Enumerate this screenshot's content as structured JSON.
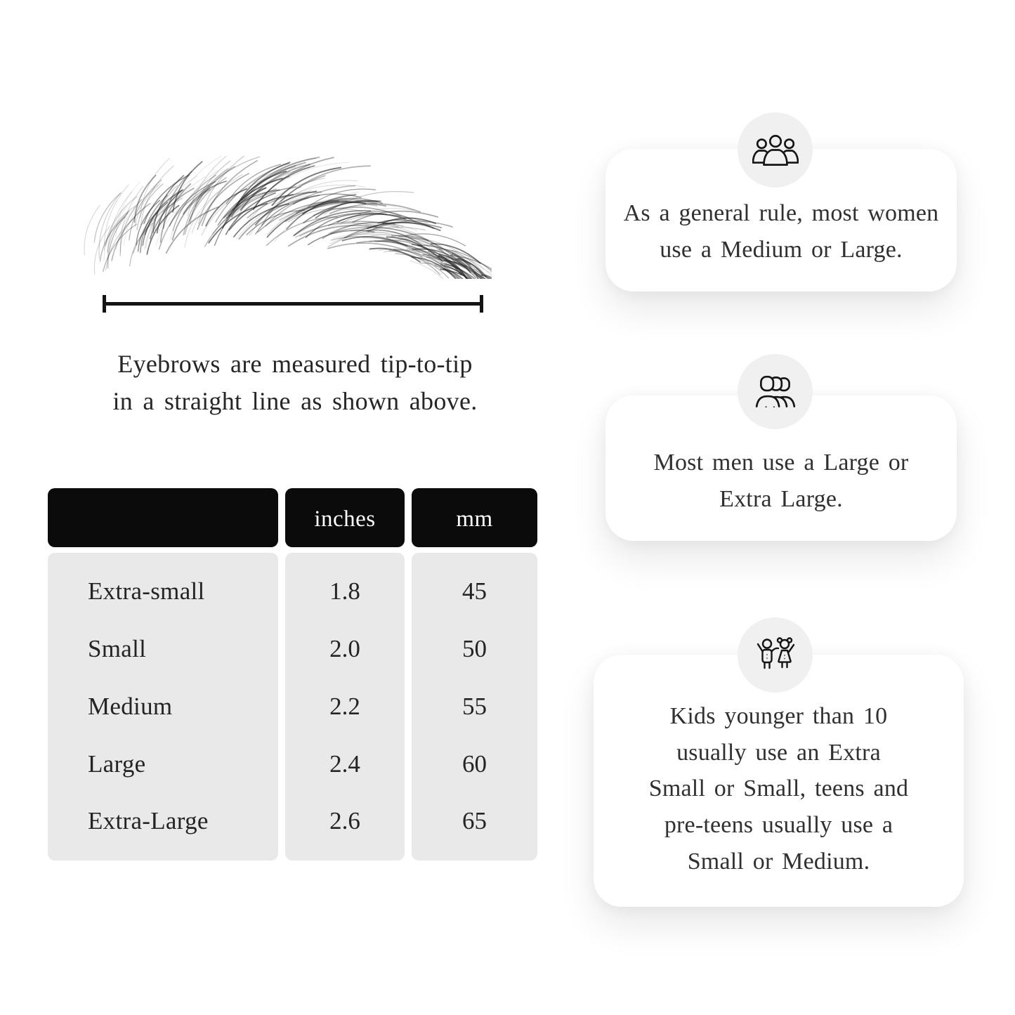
{
  "diagram": {
    "caption": "Eyebrows are measured tip-to-tip\nin a straight line as shown above."
  },
  "table": {
    "headers": {
      "size": "",
      "inches": "inches",
      "mm": "mm"
    },
    "rows": [
      {
        "label": "Extra-small",
        "inches": "1.8",
        "mm": "45"
      },
      {
        "label": "Small",
        "inches": "2.0",
        "mm": "50"
      },
      {
        "label": "Medium",
        "inches": "2.2",
        "mm": "55"
      },
      {
        "label": "Large",
        "inches": "2.4",
        "mm": "60"
      },
      {
        "label": "Extra-Large",
        "inches": "2.6",
        "mm": "65"
      }
    ]
  },
  "cards": [
    {
      "icon": "women-group-icon",
      "text": "As a general rule, most women\nuse a Medium or Large."
    },
    {
      "icon": "men-group-icon",
      "text": "Most men use a Large or\nExtra Large."
    },
    {
      "icon": "kids-icon",
      "text": "Kids younger than 10\nusually use an Extra\nSmall or Small, teens and\npre-teens usually use a\nSmall or Medium."
    }
  ],
  "colors": {
    "background": "#ffffff",
    "table_header": "#0b0b0b",
    "table_body": "#e9e9e9",
    "icon_circle": "#f0f0f0",
    "text": "#2e2e2e",
    "line": "#141414"
  }
}
